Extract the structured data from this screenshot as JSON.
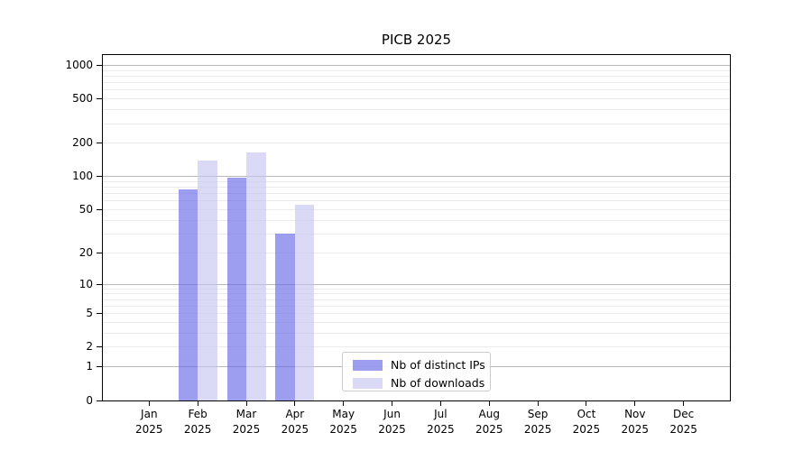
{
  "chart_data": {
    "type": "bar",
    "title": "PICB 2025",
    "categories": [
      "Jan",
      "Feb",
      "Mar",
      "Apr",
      "May",
      "Jun",
      "Jul",
      "Aug",
      "Sep",
      "Oct",
      "Nov",
      "Dec"
    ],
    "year_label": "2025",
    "series": [
      {
        "name": "Nb of distinct IPs",
        "values": [
          0,
          76,
          97,
          30,
          0,
          0,
          0,
          0,
          0,
          0,
          0,
          0
        ],
        "color": "rgba(98,98,230,0.62)",
        "solid_color": "#9e9ef0"
      },
      {
        "name": "Nb of downloads",
        "values": [
          0,
          141,
          167,
          56,
          0,
          0,
          0,
          0,
          0,
          0,
          0,
          0
        ],
        "color": "rgba(196,196,242,0.62)",
        "solid_color": "#dcdcf8"
      }
    ],
    "yticks": [
      0,
      1,
      2,
      5,
      10,
      20,
      50,
      100,
      200,
      500,
      1000
    ],
    "yscale": "log1p",
    "ylim": [
      0,
      1250
    ],
    "grid": "horizontal",
    "legend_position": "lower-center"
  },
  "colors": {
    "grid_minor": "#ececec",
    "grid_major": "#b9b9b9",
    "spine": "#000000",
    "legend_border": "#cccccc",
    "text": "#000000"
  }
}
